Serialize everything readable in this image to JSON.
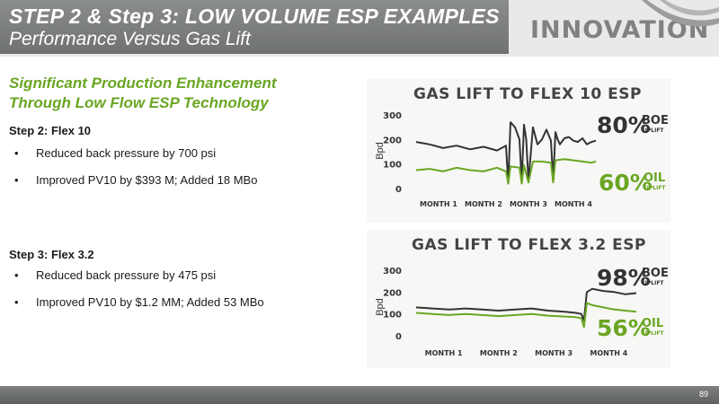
{
  "header": {
    "title": "STEP 2 & Step 3: LOW VOLUME ESP EXAMPLES",
    "subtitle": "Performance Versus Gas Lift",
    "logo_text": "INNOVATION"
  },
  "headline": {
    "line1": "Significant Production Enhancement",
    "line2": "Through Low Flow ESP Technology"
  },
  "steps": [
    {
      "label": "Step 2:  Flex 10",
      "bullets": [
        "Reduced back pressure by 700 psi",
        "Improved PV10 by $393 M; Added 18 MBo"
      ]
    },
    {
      "label": "Step 3:  Flex 3.2",
      "bullets": [
        "Reduced back pressure by 475 psi",
        "Improved PV10 by $1.2 MM; Added 53 MBo"
      ]
    }
  ],
  "colors": {
    "green": "#6aa623",
    "dark": "#333333",
    "header_gray": "#7b7e7d"
  },
  "chart_data": [
    {
      "type": "line",
      "title": "GAS LIFT TO FLEX 10 ESP",
      "ylabel": "Bpd",
      "yticks": [
        "300",
        "200",
        "100",
        "0"
      ],
      "ylim": [
        0,
        300
      ],
      "xlim": [
        0,
        4
      ],
      "xticks": [
        "MONTH 1",
        "MONTH 2",
        "MONTH 3",
        "MONTH 4"
      ],
      "series": [
        {
          "name": "BOE",
          "color": "#333333",
          "x": [
            0,
            0.3,
            0.6,
            0.9,
            1.2,
            1.5,
            1.8,
            2.0,
            2.05,
            2.1,
            2.2,
            2.3,
            2.35,
            2.4,
            2.45,
            2.5,
            2.6,
            2.7,
            2.8,
            2.9,
            3.0,
            3.05,
            3.1,
            3.15,
            3.2,
            3.3,
            3.4,
            3.5,
            3.6,
            3.7,
            3.8,
            3.9,
            4.0
          ],
          "y": [
            190,
            180,
            165,
            175,
            160,
            170,
            155,
            175,
            20,
            270,
            250,
            200,
            25,
            260,
            200,
            30,
            250,
            180,
            200,
            240,
            195,
            30,
            230,
            200,
            180,
            205,
            210,
            195,
            190,
            205,
            180,
            190,
            195
          ]
        },
        {
          "name": "OIL",
          "color": "#6aa623",
          "x": [
            0,
            0.3,
            0.6,
            0.9,
            1.2,
            1.5,
            1.8,
            2.0,
            2.05,
            2.1,
            2.3,
            2.35,
            2.4,
            2.5,
            2.6,
            2.8,
            3.0,
            3.05,
            3.1,
            3.3,
            3.5,
            3.7,
            3.9,
            4.0
          ],
          "y": [
            75,
            80,
            70,
            85,
            75,
            70,
            85,
            70,
            20,
            90,
            85,
            20,
            95,
            25,
            110,
            110,
            105,
            25,
            115,
            120,
            115,
            110,
            105,
            110
          ]
        }
      ],
      "annotations": [
        {
          "value": "80%",
          "label": "BOE",
          "sub": "UPLIFT"
        },
        {
          "value": "60%",
          "label": "OIL",
          "sub": "UPLIFT"
        }
      ]
    },
    {
      "type": "line",
      "title": "GAS LIFT TO FLEX 3.2 ESP",
      "ylabel": "Bpd",
      "yticks": [
        "300",
        "200",
        "100",
        "0"
      ],
      "ylim": [
        0,
        300
      ],
      "xlim": [
        0,
        4
      ],
      "xticks": [
        "MONTH 1",
        "MONTH 2",
        "MONTH 3",
        "MONTH 4"
      ],
      "series": [
        {
          "name": "BOE",
          "color": "#333333",
          "x": [
            0,
            0.3,
            0.6,
            0.9,
            1.2,
            1.5,
            1.8,
            2.1,
            2.4,
            2.7,
            2.9,
            3.0,
            3.05,
            3.1,
            3.2,
            3.4,
            3.6,
            3.8,
            4.0
          ],
          "y": [
            130,
            125,
            120,
            125,
            120,
            115,
            120,
            125,
            115,
            110,
            105,
            100,
            70,
            200,
            215,
            205,
            200,
            190,
            195
          ]
        },
        {
          "name": "OIL",
          "color": "#6aa623",
          "x": [
            0,
            0.3,
            0.6,
            0.9,
            1.2,
            1.5,
            1.8,
            2.1,
            2.4,
            2.7,
            2.9,
            3.0,
            3.05,
            3.1,
            3.2,
            3.4,
            3.6,
            3.8,
            4.0
          ],
          "y": [
            105,
            100,
            95,
            100,
            95,
            90,
            95,
            100,
            92,
            88,
            85,
            80,
            40,
            150,
            140,
            130,
            120,
            115,
            110
          ]
        }
      ],
      "annotations": [
        {
          "value": "98%",
          "label": "BOE",
          "sub": "UPLIFT"
        },
        {
          "value": "56%",
          "label": "OIL",
          "sub": "UPLIFT"
        }
      ]
    }
  ],
  "footer": {
    "page_number": "89"
  }
}
